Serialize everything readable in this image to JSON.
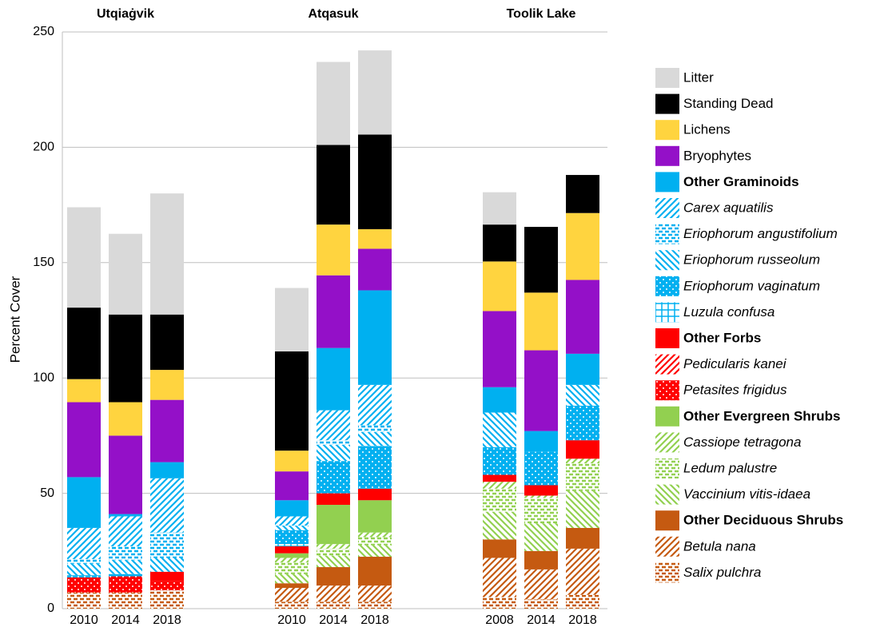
{
  "chart_data": {
    "type": "stacked-bar",
    "ylabel": "Percent Cover",
    "ylim": [
      0,
      250
    ],
    "yticks": [
      0,
      50,
      100,
      150,
      200,
      250
    ],
    "grid": true,
    "groups": [
      {
        "name": "Utqiaġvik",
        "categories": [
          "2010",
          "2014",
          "2018"
        ]
      },
      {
        "name": "Atqasuk",
        "categories": [
          "2010",
          "2014",
          "2018"
        ]
      },
      {
        "name": "Toolik Lake",
        "categories": [
          "2008",
          "2014",
          "2018"
        ]
      }
    ],
    "legend": "right",
    "series": [
      {
        "name": "Litter",
        "color": "#d9d9d9",
        "pattern": "solid",
        "style": "normal",
        "values": [
          43.5,
          35,
          52.5,
          27.5,
          36,
          36.5,
          14,
          0,
          0
        ]
      },
      {
        "name": "Standing Dead",
        "color": "#000000",
        "pattern": "solid",
        "style": "normal",
        "values": [
          31,
          38,
          24,
          43,
          34.5,
          41,
          16,
          28.5,
          16.5
        ]
      },
      {
        "name": "Lichens",
        "color": "#ffd43f",
        "pattern": "solid",
        "style": "normal",
        "values": [
          10,
          14.5,
          13,
          9,
          22,
          8.5,
          21.5,
          25,
          29
        ]
      },
      {
        "name": "Bryophytes",
        "color": "#9410c8",
        "pattern": "solid",
        "style": "normal",
        "values": [
          32.5,
          34,
          27,
          12.5,
          31.5,
          18,
          33,
          35,
          32
        ]
      },
      {
        "name": "Other Graminoids",
        "color": "#00b0f0",
        "pattern": "solid",
        "style": "bold",
        "values": [
          22,
          1,
          7,
          7,
          27,
          41,
          11,
          9,
          13.5
        ]
      },
      {
        "name": "Carex aquatilis",
        "color": "#00b0f0",
        "pattern": "hatch-up",
        "style": "italic",
        "values": [
          13.5,
          13,
          23.5,
          4,
          13,
          17.5,
          0,
          0,
          0
        ]
      },
      {
        "name": "Eriophorum angustifolium",
        "color": "#00b0f0",
        "pattern": "dashes",
        "style": "italic",
        "values": [
          2,
          6,
          11,
          0,
          2,
          3,
          0,
          0,
          0
        ]
      },
      {
        "name": "Eriophorum russeolum",
        "color": "#00b0f0",
        "pattern": "hatch-down",
        "style": "italic",
        "values": [
          5,
          6,
          6,
          2,
          7,
          6,
          15,
          0,
          9
        ]
      },
      {
        "name": "Eriophorum vaginatum",
        "color": "#00b0f0",
        "pattern": "dots",
        "style": "italic",
        "values": [
          1,
          1,
          0,
          6,
          14,
          18.5,
          12,
          14.5,
          15
        ]
      },
      {
        "name": "Luzula confusa",
        "color": "#00b0f0",
        "pattern": "grid",
        "style": "italic",
        "values": [
          0,
          0,
          0,
          1,
          0,
          0,
          0,
          0,
          0
        ]
      },
      {
        "name": "Other Forbs",
        "color": "#ff0000",
        "pattern": "solid",
        "style": "bold",
        "values": [
          0,
          0,
          4,
          3,
          5,
          5,
          3,
          4.5,
          8
        ]
      },
      {
        "name": "Pedicularis kanei",
        "color": "#ff0000",
        "pattern": "hatch-up",
        "style": "italic",
        "values": [
          0,
          0,
          0,
          0,
          0,
          0,
          0,
          0,
          0
        ]
      },
      {
        "name": "Petasites frigidus",
        "color": "#ff0000",
        "pattern": "dots",
        "style": "italic",
        "values": [
          6.5,
          7,
          4,
          0,
          0,
          0,
          0,
          0,
          0
        ]
      },
      {
        "name": "Other Evergreen Shrubs",
        "color": "#92d050",
        "pattern": "solid",
        "style": "bold",
        "values": [
          0,
          0,
          0,
          2,
          17,
          14,
          0,
          0,
          0
        ]
      },
      {
        "name": "Cassiope tetragona",
        "color": "#92d050",
        "pattern": "hatch-up",
        "style": "italic",
        "values": [
          0,
          0,
          0,
          2,
          2,
          2,
          3,
          1,
          2
        ]
      },
      {
        "name": "Ledum palustre",
        "color": "#92d050",
        "pattern": "dashes",
        "style": "italic",
        "values": [
          0,
          0,
          0,
          5,
          3,
          3.5,
          10,
          11,
          12
        ]
      },
      {
        "name": "Vaccinium vitis-idaea",
        "color": "#92d050",
        "pattern": "hatch-down",
        "style": "italic",
        "values": [
          0,
          0,
          0,
          4,
          5,
          5,
          12,
          12,
          16
        ]
      },
      {
        "name": "Other Deciduous Shrubs",
        "color": "#c55a11",
        "pattern": "solid",
        "style": "bold",
        "values": [
          0,
          0,
          0,
          2,
          8,
          12.5,
          8,
          8,
          9
        ]
      },
      {
        "name": "Betula nana",
        "color": "#c55a11",
        "pattern": "hatch-up",
        "style": "italic",
        "values": [
          0,
          0,
          0,
          6,
          7,
          7,
          17,
          13,
          20
        ]
      },
      {
        "name": "Salix pulchra",
        "color": "#c55a11",
        "pattern": "dashes",
        "style": "italic",
        "values": [
          7,
          7,
          8,
          3,
          3,
          3,
          5,
          4,
          6
        ]
      }
    ]
  }
}
